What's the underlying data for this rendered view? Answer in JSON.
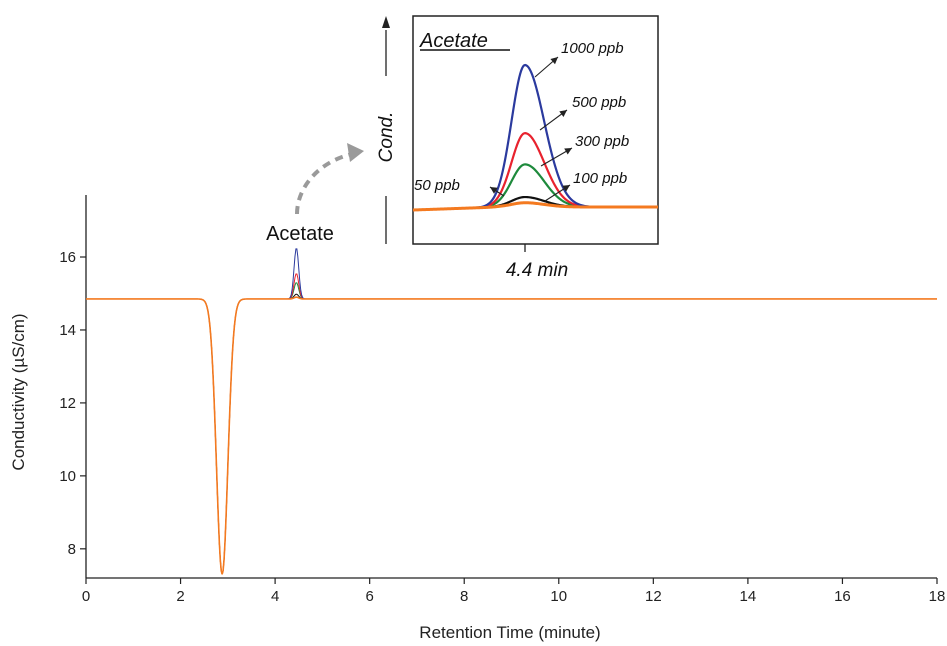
{
  "chart_data": {
    "type": "line",
    "title": "",
    "xlabel": "Retention Time (minute)",
    "ylabel": "Conductivity (µS/cm)",
    "xlim": [
      0,
      18
    ],
    "ylim": [
      7.2,
      17.7
    ],
    "x_ticks": [
      0,
      2,
      4,
      6,
      8,
      10,
      12,
      14,
      16,
      18
    ],
    "y_ticks": [
      8,
      10,
      12,
      14,
      16
    ],
    "grid": false,
    "legend": "none",
    "baseline": 14.85,
    "dip": {
      "x": 2.88,
      "y": 7.3
    },
    "peak_label": "Acetate",
    "series": [
      {
        "label": "1000 ppb",
        "color": "#2b3a9e",
        "peak_x": 4.45,
        "peak_y": 16.25,
        "width": 0.07
      },
      {
        "label": "500 ppb",
        "color": "#e8222e",
        "peak_x": 4.45,
        "peak_y": 15.55,
        "width": 0.07
      },
      {
        "label": "300 ppb",
        "color": "#1e8a3c",
        "peak_x": 4.45,
        "peak_y": 15.3,
        "width": 0.07
      },
      {
        "label": "100 ppb",
        "color": "#111111",
        "peak_x": 4.45,
        "peak_y": 14.98,
        "width": 0.07
      },
      {
        "label": "50 ppb",
        "color": "#f47a20",
        "peak_x": 4.45,
        "peak_y": 14.9,
        "width": 0.07
      }
    ],
    "inset": {
      "title": "Acetate",
      "ylabel": "Cond.",
      "xlabel": "4.4 min",
      "relative_heights": [
        1.0,
        0.52,
        0.3,
        0.07,
        0.03
      ]
    }
  },
  "colors": {
    "axis": "#222222",
    "arrow_dashed": "#9a9a9a"
  }
}
